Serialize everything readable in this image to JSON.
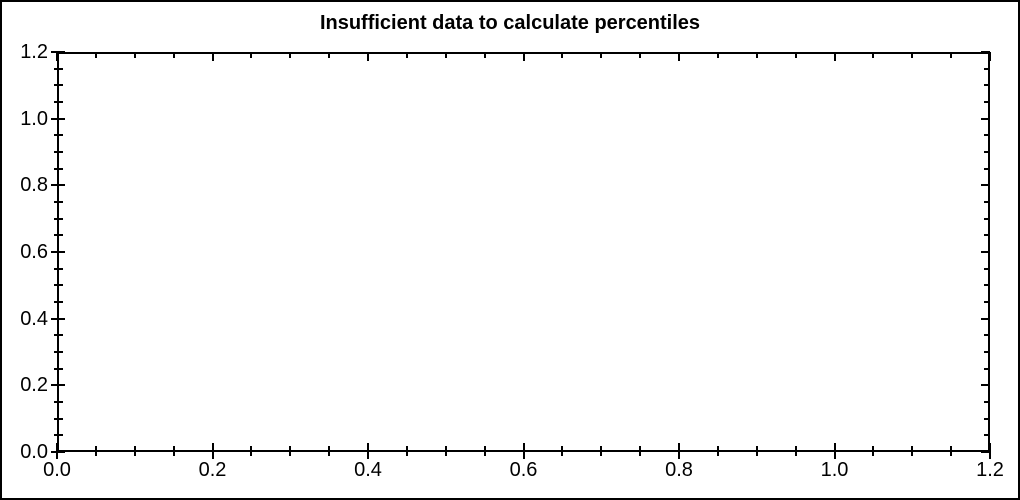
{
  "chart": {
    "colors": {
      "axis": "#000000",
      "background": "#ffffff",
      "text": "#000000"
    }
  },
  "chart_data": {
    "type": "scatter",
    "title": "Insufficient data to calculate percentiles",
    "series": [],
    "xlabel": "",
    "ylabel": "",
    "xlim": [
      0,
      1.2
    ],
    "ylim": [
      0,
      1.2
    ],
    "grid": false,
    "legend": false,
    "frame": "box",
    "tick_style": "left-bottom ticks cross axis; top-right ticks point inward",
    "minor_tick_interval": 0.05,
    "x_major_ticks": [
      0,
      0.2,
      0.4,
      0.6,
      0.8,
      1.0,
      1.2
    ],
    "y_major_ticks": [
      0,
      0.2,
      0.4,
      0.6,
      0.8,
      1.0,
      1.2
    ],
    "x_tick_labels": [
      "0.0",
      "0.2",
      "0.4",
      "0.6",
      "0.8",
      "1.0",
      "1.2"
    ],
    "y_tick_labels": [
      "0.0",
      "0.2",
      "0.4",
      "0.6",
      "0.8",
      "1.0",
      "1.2"
    ]
  }
}
